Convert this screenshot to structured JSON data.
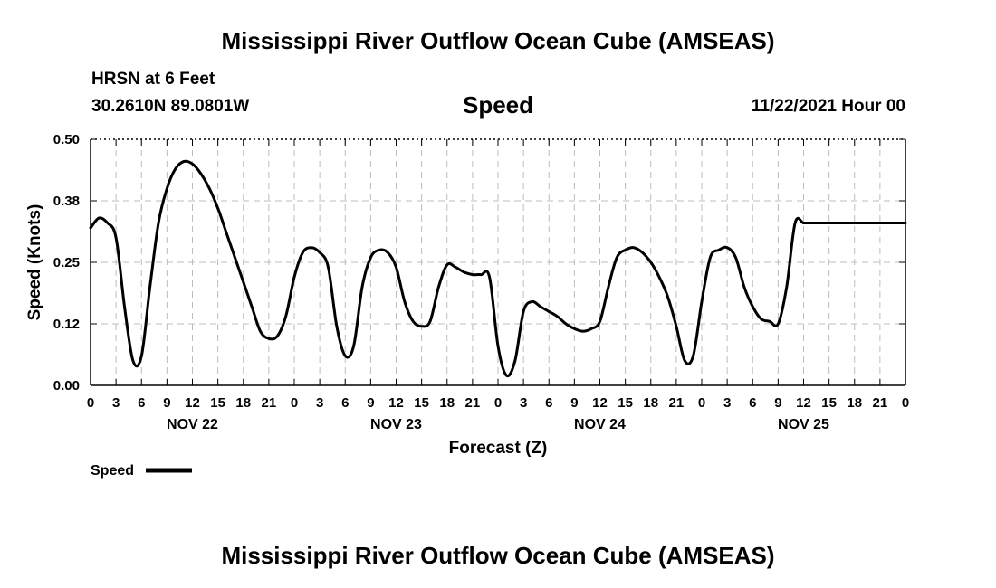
{
  "header": {
    "title": "Mississippi River Outflow Ocean Cube (AMSEAS)",
    "station": "HRSN at 6 Feet",
    "coordinates": "30.2610N  89.0801W",
    "panel_title": "Speed",
    "timestamp": "11/22/2021 Hour 00"
  },
  "footer": {
    "title": "Mississippi River Outflow Ocean Cube (AMSEAS)"
  },
  "chart_data": {
    "type": "line",
    "title": "Speed",
    "xlabel": "Forecast (Z)",
    "ylabel": "Speed (Knots)",
    "xlim": [
      0,
      96
    ],
    "ylim": [
      0,
      0.5
    ],
    "y_ticks": [
      "0.00",
      "0.12",
      "0.25",
      "0.38",
      "0.50"
    ],
    "x_tick_hours": [
      0,
      3,
      6,
      9,
      12,
      15,
      18,
      21,
      24,
      27,
      30,
      33,
      36,
      39,
      42,
      45,
      48,
      51,
      54,
      57,
      60,
      63,
      66,
      69,
      72,
      75,
      78,
      81,
      84,
      87,
      90,
      93,
      96
    ],
    "x_tick_labels": [
      "0",
      "3",
      "6",
      "9",
      "12",
      "15",
      "18",
      "21",
      "0",
      "3",
      "6",
      "9",
      "12",
      "15",
      "18",
      "21",
      "0",
      "3",
      "6",
      "9",
      "12",
      "15",
      "18",
      "21",
      "0",
      "3",
      "6",
      "9",
      "12",
      "15",
      "18",
      "21",
      "0"
    ],
    "day_labels": [
      {
        "hour": 12,
        "label": "NOV 22"
      },
      {
        "hour": 36,
        "label": "NOV 23"
      },
      {
        "hour": 60,
        "label": "NOV 24"
      },
      {
        "hour": 84,
        "label": "NOV 25"
      }
    ],
    "grid": true,
    "legend": {
      "position": "bottom-left",
      "entries": [
        "Speed"
      ]
    },
    "series": [
      {
        "name": "Speed",
        "color": "#000000",
        "x": [
          0,
          1,
          2,
          3,
          4,
          5,
          6,
          7,
          8,
          9,
          10,
          11,
          12,
          13,
          14,
          15,
          16,
          17,
          18,
          19,
          20,
          21,
          22,
          23,
          24,
          25,
          26,
          27,
          28,
          29,
          30,
          31,
          32,
          33,
          34,
          35,
          36,
          37,
          38,
          39,
          40,
          41,
          42,
          43,
          44,
          45,
          46,
          47,
          48,
          49,
          50,
          51,
          52,
          53,
          54,
          55,
          56,
          57,
          58,
          59,
          60,
          61,
          62,
          63,
          64,
          65,
          66,
          67,
          68,
          69,
          70,
          71,
          72,
          73,
          74,
          75,
          76,
          77,
          78,
          79,
          80,
          81,
          82,
          83,
          84,
          85,
          86,
          87,
          88,
          89,
          90,
          91,
          92,
          93,
          94,
          95,
          96
        ],
        "values": [
          0.32,
          0.34,
          0.33,
          0.3,
          0.16,
          0.05,
          0.06,
          0.2,
          0.33,
          0.4,
          0.44,
          0.455,
          0.45,
          0.43,
          0.4,
          0.36,
          0.31,
          0.26,
          0.21,
          0.16,
          0.11,
          0.095,
          0.1,
          0.14,
          0.22,
          0.27,
          0.28,
          0.27,
          0.24,
          0.12,
          0.06,
          0.08,
          0.2,
          0.26,
          0.275,
          0.27,
          0.24,
          0.17,
          0.13,
          0.12,
          0.13,
          0.2,
          0.245,
          0.24,
          0.23,
          0.225,
          0.225,
          0.22,
          0.08,
          0.02,
          0.05,
          0.15,
          0.17,
          0.16,
          0.15,
          0.14,
          0.125,
          0.115,
          0.11,
          0.115,
          0.13,
          0.2,
          0.26,
          0.275,
          0.28,
          0.27,
          0.25,
          0.22,
          0.18,
          0.12,
          0.05,
          0.06,
          0.17,
          0.26,
          0.275,
          0.28,
          0.26,
          0.2,
          0.16,
          0.135,
          0.13,
          0.125,
          0.2,
          0.33,
          0.33,
          0.33,
          0.33,
          0.33,
          0.33,
          0.33,
          0.33,
          0.33,
          0.33,
          0.33,
          0.33,
          0.33,
          0.33
        ]
      }
    ]
  }
}
